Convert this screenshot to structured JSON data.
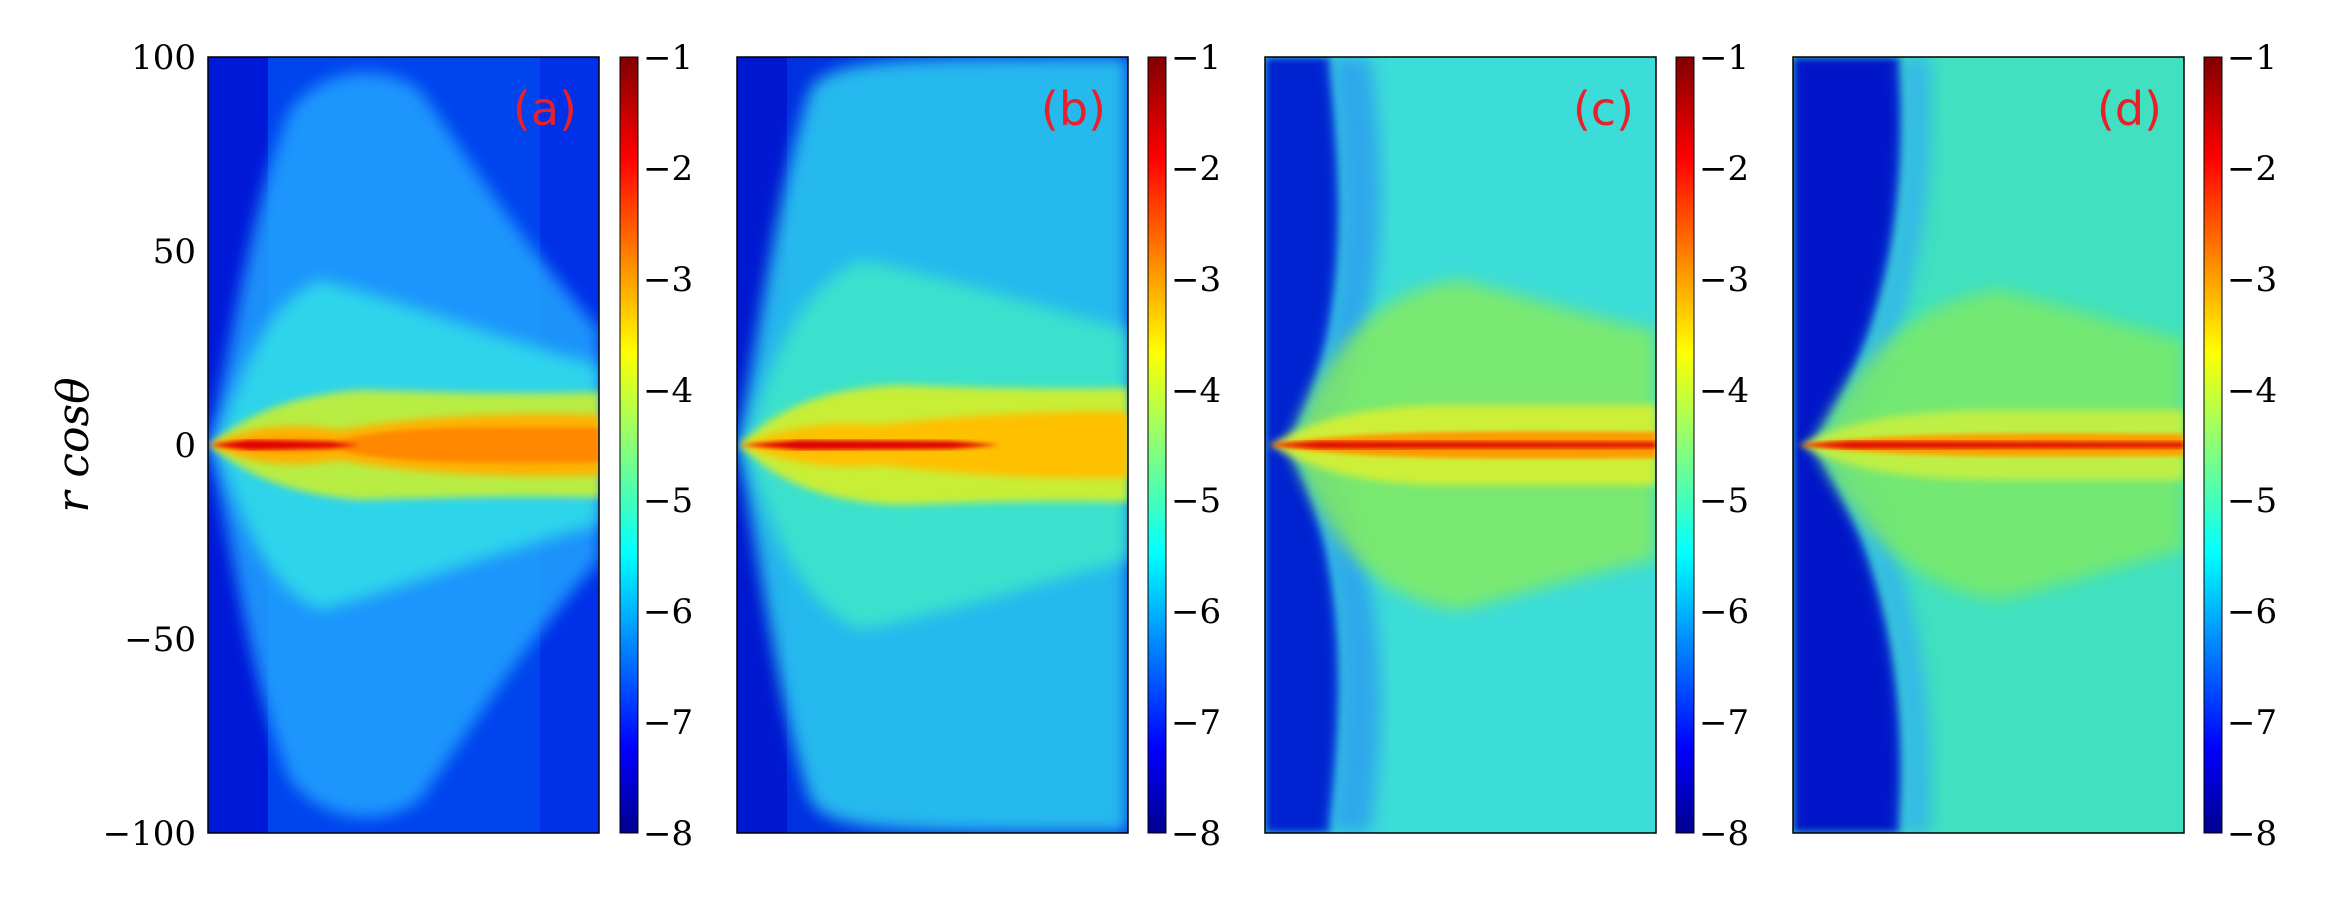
{
  "chart_data": {
    "type": "heatmap",
    "ylabel": "r cosθ",
    "xlabel": "",
    "ylim": [
      -100,
      100
    ],
    "yticks": [
      "100",
      "50",
      "0",
      "−50",
      "−100"
    ],
    "ytick_values": [
      100,
      50,
      0,
      -50,
      -100
    ],
    "colorbar": {
      "range": [
        -8,
        -1
      ],
      "ticks": [
        "−1",
        "−2",
        "−3",
        "−4",
        "−5",
        "−6",
        "−7",
        "−8"
      ],
      "tick_values": [
        -1,
        -2,
        -3,
        -4,
        -5,
        -6,
        -7,
        -8
      ],
      "colormap": "jet"
    },
    "panels": [
      {
        "label": "(a)",
        "label_color": "#e8202a"
      },
      {
        "label": "(b)",
        "label_color": "#e8202a"
      },
      {
        "label": "(c)",
        "label_color": "#e8202a"
      },
      {
        "label": "(d)",
        "label_color": "#e8202a"
      }
    ],
    "grid": false
  }
}
